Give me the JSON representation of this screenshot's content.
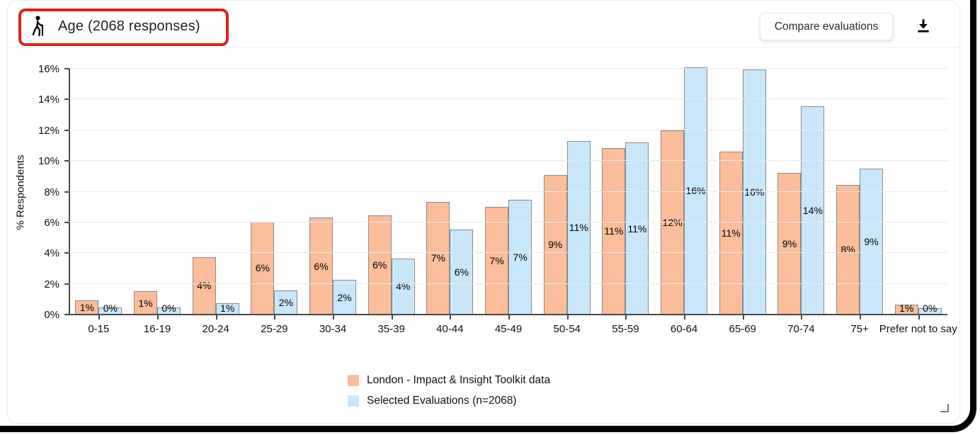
{
  "header": {
    "title": "Age (2068 responses)",
    "compare_button_label": "Compare evaluations",
    "icons": {
      "title_icon": "person-with-cane-icon",
      "download": "download-icon"
    },
    "highlight_box_color": "#e0201c"
  },
  "chart_data": {
    "type": "bar",
    "title": "Age (2068 responses)",
    "xlabel": "",
    "ylabel": "% Respondents",
    "ylim": [
      0,
      16
    ],
    "ytick_step": 2,
    "ytick_suffix": "%",
    "grid": true,
    "legend_position": "bottom",
    "categories": [
      "0-15",
      "16-19",
      "20-24",
      "25-29",
      "30-34",
      "35-39",
      "40-44",
      "45-49",
      "50-54",
      "55-59",
      "60-64",
      "65-69",
      "70-74",
      "75+",
      "Prefer not to say"
    ],
    "series": [
      {
        "name": "London - Impact & Insight Toolkit data",
        "color": "#FBBD9A",
        "border_color": "#8b8b8b",
        "values": [
          0.9,
          1.5,
          3.75,
          6.05,
          6.3,
          6.45,
          7.35,
          7.0,
          9.1,
          10.85,
          12.0,
          10.6,
          9.2,
          8.45,
          0.65
        ],
        "labels": [
          "1%",
          "1%",
          "4%",
          "6%",
          "6%",
          "6%",
          "7%",
          "7%",
          "9%",
          "11%",
          "12%",
          "11%",
          "9%",
          "8%",
          "1%"
        ]
      },
      {
        "name": "Selected Evaluations (n=2068)",
        "color": "#C9E7FB",
        "border_color": "#8b8b8b",
        "values": [
          0.45,
          0.45,
          0.75,
          1.55,
          2.25,
          3.65,
          5.55,
          7.45,
          11.3,
          11.2,
          16.1,
          15.95,
          13.55,
          9.5,
          0.4
        ],
        "labels": [
          "0%",
          "0%",
          "1%",
          "2%",
          "2%",
          "4%",
          "6%",
          "7%",
          "11%",
          "11%",
          "16%",
          "16%",
          "14%",
          "9%",
          "0%"
        ]
      }
    ]
  }
}
